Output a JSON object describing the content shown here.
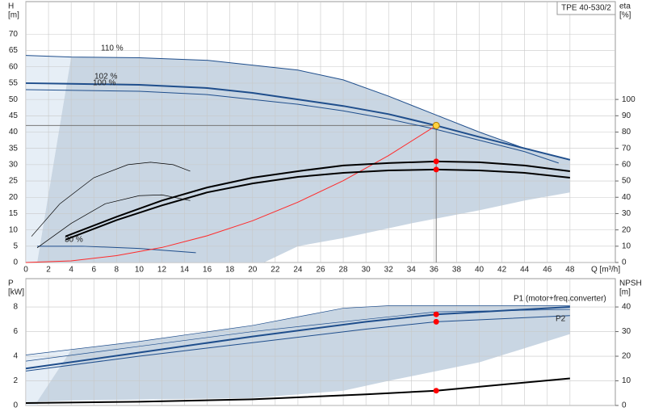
{
  "chart_data": [
    {
      "type": "line",
      "title": "TPE 40-530/2",
      "ylabel": [
        "H",
        "[m]"
      ],
      "y2label": [
        "eta",
        "[%]"
      ],
      "xlabel": "Q [m³/h]",
      "xlim": [
        0,
        52
      ],
      "xticks": [
        0,
        2,
        4,
        6,
        8,
        10,
        12,
        14,
        16,
        18,
        20,
        22,
        24,
        26,
        28,
        30,
        32,
        34,
        36,
        38,
        40,
        42,
        44,
        46,
        48
      ],
      "ylim": [
        0,
        80
      ],
      "yticks": [
        0,
        5,
        10,
        15,
        20,
        25,
        30,
        35,
        40,
        45,
        50,
        55,
        60,
        65,
        70
      ],
      "y2lim": [
        0,
        160
      ],
      "y2ticks": [
        0,
        10,
        20,
        30,
        40,
        50,
        60,
        70,
        80,
        90,
        100
      ],
      "grid": true,
      "areas": [
        {
          "color": "#e6eef6",
          "x": [
            0,
            4,
            1,
            0
          ],
          "y": [
            63.5,
            63,
            0,
            0
          ]
        },
        {
          "color": "#c9d6e3",
          "x": [
            4,
            10,
            16,
            24,
            28,
            32,
            36,
            40,
            44,
            48,
            48,
            44,
            40,
            34,
            28,
            24,
            21,
            1
          ],
          "y": [
            63,
            62.8,
            62,
            59,
            56,
            51,
            45.5,
            40,
            35,
            31.5,
            21.5,
            19,
            16,
            12,
            7.5,
            5,
            0,
            0
          ]
        }
      ],
      "series": [
        {
          "name": "110 %",
          "color": "#1f4e8c",
          "width": 1,
          "x": [
            0,
            4,
            10,
            16,
            24,
            28,
            32,
            36,
            40,
            44,
            48
          ],
          "values": [
            63.5,
            63,
            62.8,
            62,
            59,
            56,
            51,
            45.5,
            40,
            35,
            31.5
          ]
        },
        {
          "name": "102 %",
          "color": "#1f4e8c",
          "width": 2,
          "x": [
            0,
            4,
            10,
            16,
            20,
            24,
            28,
            32,
            36.2,
            40,
            44,
            48
          ],
          "values": [
            55,
            54.8,
            54.5,
            53.5,
            52,
            50,
            48,
            45.5,
            42,
            38.5,
            35,
            31.5
          ]
        },
        {
          "name": "100 %",
          "color": "#1f4e8c",
          "width": 1,
          "x": [
            0,
            10,
            16,
            24,
            28,
            32,
            36,
            40,
            44,
            47
          ],
          "values": [
            53,
            52.5,
            51.5,
            48.5,
            46.5,
            44,
            41,
            37.5,
            34,
            30.5
          ]
        },
        {
          "name": "30 %",
          "color": "#1f4e8c",
          "width": 1,
          "x": [
            1,
            5,
            10,
            15
          ],
          "values": [
            5,
            5,
            4.3,
            3
          ]
        },
        {
          "color": "#ff2a2a",
          "width": 1,
          "x": [
            0,
            4,
            8,
            12,
            16,
            20,
            24,
            28,
            32,
            36.2
          ],
          "values": [
            0,
            0.5,
            2.1,
            4.6,
            8.2,
            12.8,
            18.5,
            25.1,
            32.8,
            42
          ]
        },
        {
          "color": "#000000",
          "width": 2,
          "axis": "y2",
          "x": [
            3.5,
            8,
            12,
            16,
            20,
            24,
            28,
            32,
            36.2,
            40,
            44,
            48
          ],
          "values": [
            16,
            28,
            38,
            46,
            52,
            56,
            59.5,
            61,
            62,
            61.5,
            59.5,
            56
          ]
        },
        {
          "color": "#000000",
          "width": 2,
          "axis": "y2",
          "x": [
            3.5,
            8,
            12,
            16,
            20,
            24,
            28,
            32,
            36.2,
            40,
            44,
            48
          ],
          "values": [
            14,
            26,
            35,
            43,
            48.5,
            52.5,
            55,
            56.5,
            57,
            56.5,
            55,
            52
          ]
        },
        {
          "color": "#000000",
          "width": 0.7,
          "axis": "y2",
          "x": [
            0.5,
            3,
            6,
            9,
            11,
            13,
            14.5
          ],
          "values": [
            16,
            36,
            52,
            60,
            61.5,
            60,
            56
          ]
        },
        {
          "color": "#000000",
          "width": 0.7,
          "axis": "y2",
          "x": [
            1,
            4,
            7,
            10,
            12,
            14.5
          ],
          "values": [
            9,
            24,
            36,
            41,
            41.5,
            38
          ]
        }
      ],
      "operating_point": {
        "x": 36.2,
        "y": 42,
        "color": "#ffd23f"
      },
      "markers": [
        {
          "x": 36.2,
          "y": 62,
          "axis": "y2",
          "color": "#ff0000"
        },
        {
          "x": 36.2,
          "y": 57,
          "axis": "y2",
          "color": "#ff0000"
        }
      ]
    },
    {
      "type": "line",
      "ylabel": [
        "P",
        "[kW]"
      ],
      "y2label": [
        "NPSH",
        "[m]"
      ],
      "xlim": [
        0,
        52
      ],
      "xticks": [
        0,
        2,
        4,
        6,
        8,
        10,
        12,
        14,
        16,
        18,
        20,
        22,
        24,
        26,
        28,
        30,
        32,
        34,
        36,
        38,
        40,
        42,
        44,
        46,
        48
      ],
      "xtick_labels": false,
      "ylim": [
        0,
        10.3
      ],
      "yticks": [
        0,
        2,
        4,
        6,
        8
      ],
      "y2lim": [
        0,
        51.5
      ],
      "y2ticks": [
        0,
        10,
        20,
        30,
        40
      ],
      "grid": true,
      "areas": [
        {
          "color": "#e6eef6",
          "x": [
            0,
            4,
            1,
            0
          ],
          "y": [
            4.1,
            4.5,
            0,
            0
          ]
        },
        {
          "color": "#c9d6e3",
          "x": [
            4,
            10,
            20,
            28,
            32,
            48,
            48,
            40,
            32,
            28,
            20,
            4,
            1
          ],
          "y": [
            4.5,
            5.2,
            6.5,
            7.9,
            8.1,
            8.1,
            5.8,
            3.5,
            2,
            1.2,
            0.6,
            0.4,
            0.3
          ]
        }
      ],
      "series": [
        {
          "name": "P1 (motor+freq.converter)",
          "color": "#1f4e8c",
          "width": 2,
          "x": [
            0,
            10,
            20,
            30,
            36.2,
            48
          ],
          "values": [
            3.0,
            4.3,
            5.6,
            6.8,
            7.4,
            8.0
          ]
        },
        {
          "name": "P2",
          "color": "#1f4e8c",
          "width": 1,
          "x": [
            0,
            10,
            20,
            30,
            36.2,
            48
          ],
          "values": [
            2.8,
            4.0,
            5.1,
            6.2,
            6.8,
            7.3
          ]
        },
        {
          "color": "#1f4e8c",
          "width": 0.7,
          "x": [
            0,
            10,
            20,
            28,
            32,
            48
          ],
          "values": [
            4.1,
            5.2,
            6.5,
            7.9,
            8.1,
            8.1
          ]
        },
        {
          "color": "#1f4e8c",
          "width": 0.7,
          "x": [
            0,
            10,
            20,
            30,
            36.2,
            48
          ],
          "values": [
            3.6,
            4.8,
            6.0,
            7.0,
            7.6,
            7.8
          ]
        },
        {
          "color": "#000000",
          "width": 2,
          "axis": "y2",
          "x": [
            0,
            10,
            20,
            30,
            36.2,
            48
          ],
          "values": [
            1,
            1.5,
            2.5,
            4.5,
            6,
            11
          ]
        }
      ],
      "markers": [
        {
          "x": 36.2,
          "y": 7.4,
          "color": "#ff0000"
        },
        {
          "x": 36.2,
          "y": 6.8,
          "color": "#ff0000"
        },
        {
          "x": 36.2,
          "y": 6,
          "axis": "y2",
          "color": "#ff0000"
        }
      ]
    }
  ]
}
